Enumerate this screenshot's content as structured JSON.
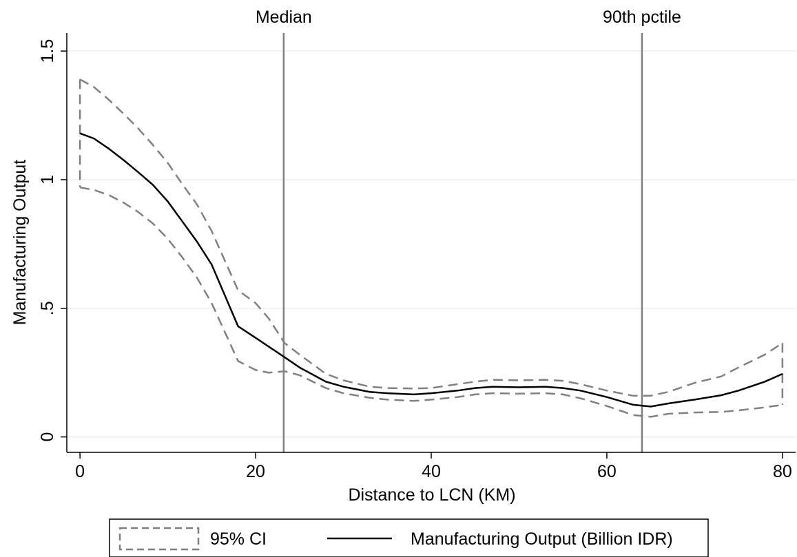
{
  "chart_data": {
    "type": "line",
    "xlabel": "Distance to LCN (KM)",
    "ylabel": "Manufacturing Output",
    "xlim": [
      -1.5,
      81.5
    ],
    "ylim": [
      -0.06,
      1.57
    ],
    "xticks": [
      0,
      20,
      40,
      60,
      80
    ],
    "xtick_labels": [
      "0",
      "20",
      "40",
      "60",
      "80"
    ],
    "yticks": [
      0,
      0.5,
      1,
      1.5
    ],
    "ytick_labels": [
      "0",
      ".5",
      "1",
      "1.5"
    ],
    "grid": "horizontal",
    "reference_lines": [
      {
        "x": 23.2,
        "label": "Median"
      },
      {
        "x": 64.0,
        "label": "90th pctile"
      }
    ],
    "series": [
      {
        "name": "Manufacturing Output (Billion IDR)",
        "style": "solid",
        "color": "#000000",
        "x": [
          0,
          1.6,
          3.3,
          5,
          6.6,
          8.3,
          10,
          11.6,
          13.3,
          15,
          18,
          20,
          23.3,
          25,
          28,
          30,
          33,
          35,
          38,
          40,
          43,
          45,
          47,
          50,
          53,
          55,
          57,
          60,
          63,
          65,
          67,
          70,
          73,
          75,
          78,
          80
        ],
        "y": [
          1.18,
          1.16,
          1.12,
          1.075,
          1.03,
          0.98,
          0.915,
          0.84,
          0.76,
          0.67,
          0.43,
          0.385,
          0.31,
          0.27,
          0.215,
          0.195,
          0.175,
          0.17,
          0.165,
          0.17,
          0.18,
          0.19,
          0.195,
          0.193,
          0.195,
          0.19,
          0.18,
          0.155,
          0.125,
          0.118,
          0.13,
          0.145,
          0.162,
          0.18,
          0.215,
          0.245
        ]
      },
      {
        "name": "95% CI",
        "style": "dashed",
        "color": "#808080",
        "x": [
          0,
          1.6,
          3.3,
          5,
          6.6,
          8.3,
          10,
          11.6,
          13.3,
          15,
          18,
          20,
          21.5,
          23.3,
          25,
          28,
          30,
          33,
          35,
          38,
          40,
          43,
          45,
          47,
          50,
          53,
          55,
          57,
          60,
          63,
          65,
          67,
          70,
          73,
          75,
          78,
          80
        ],
        "upper": [
          1.39,
          1.36,
          1.31,
          1.255,
          1.2,
          1.135,
          1.065,
          0.985,
          0.905,
          0.8,
          0.57,
          0.52,
          0.46,
          0.365,
          0.32,
          0.245,
          0.22,
          0.195,
          0.19,
          0.188,
          0.19,
          0.205,
          0.215,
          0.222,
          0.22,
          0.222,
          0.218,
          0.205,
          0.18,
          0.16,
          0.16,
          0.175,
          0.21,
          0.235,
          0.27,
          0.32,
          0.365
        ],
        "lower": [
          0.97,
          0.96,
          0.94,
          0.91,
          0.875,
          0.83,
          0.77,
          0.7,
          0.62,
          0.52,
          0.295,
          0.26,
          0.25,
          0.255,
          0.24,
          0.19,
          0.17,
          0.152,
          0.145,
          0.14,
          0.145,
          0.155,
          0.165,
          0.17,
          0.168,
          0.17,
          0.165,
          0.15,
          0.12,
          0.085,
          0.078,
          0.09,
          0.095,
          0.097,
          0.103,
          0.115,
          0.125
        ]
      }
    ],
    "legend": {
      "placement": "bottom",
      "entries": [
        "95% CI",
        "Manufacturing Output (Billion IDR)"
      ]
    }
  }
}
